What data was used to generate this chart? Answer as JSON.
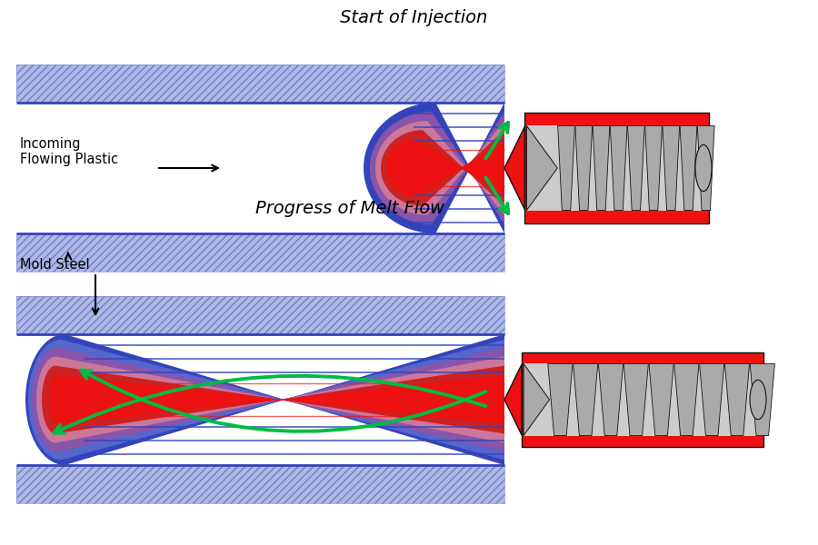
{
  "title_top": "Start of Injection",
  "title_bottom": "Progress of Melt Flow",
  "label_incoming": "Incoming\nFlowing Plastic",
  "label_mold_steel": "Mold Steel",
  "bg_color": "#ffffff",
  "hatch_face": "#b0b8e8",
  "hatch_color": "#7080c0",
  "blue_dark": "#3344bb",
  "blue_mid": "#5566cc",
  "red_bright": "#ee1111",
  "red_mid": "#cc2222",
  "pink": "#cc7799",
  "purple": "#8855aa",
  "green_arrow": "#00bb44",
  "dark": "#111111",
  "gray_screw": "#aaaaaa",
  "gray_light": "#cccccc"
}
